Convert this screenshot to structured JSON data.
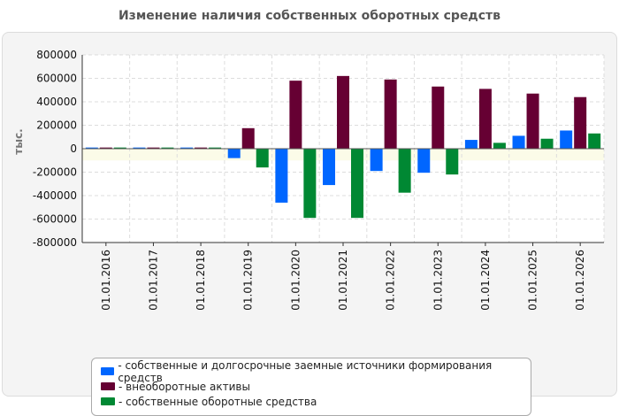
{
  "chart_data": {
    "type": "bar",
    "title": "Изменение наличия собственных оборотных средств",
    "xlabel": "",
    "ylabel": "тыс.",
    "ylim": [
      -800000,
      800000
    ],
    "yticks": [
      "800000",
      "600000",
      "400000",
      "200000",
      "0",
      "-200000",
      "-400000",
      "-600000",
      "-800000"
    ],
    "grid": true,
    "legend_position": "bottom",
    "categories": [
      "01.01.2016",
      "01.01.2017",
      "01.01.2018",
      "01.01.2019",
      "01.01.2020",
      "01.01.2021",
      "01.01.2022",
      "01.01.2023",
      "01.01.2024",
      "01.01.2025",
      "01.01.2026"
    ],
    "series": [
      {
        "name": "- собственные и долгосрочные заемные источники формирования средств",
        "color": "#0066ff",
        "values": [
          10000,
          10000,
          10000,
          -80000,
          -460000,
          -310000,
          -190000,
          -205000,
          75000,
          110000,
          155000
        ]
      },
      {
        "name": "- внеоборотные активы",
        "color": "#660033",
        "values": [
          10000,
          10000,
          10000,
          175000,
          580000,
          620000,
          590000,
          530000,
          510000,
          470000,
          440000
        ]
      },
      {
        "name": "- собственные оборотные средства",
        "color": "#008833",
        "values": [
          10000,
          10000,
          10000,
          -160000,
          -590000,
          -590000,
          -375000,
          -220000,
          50000,
          85000,
          130000
        ]
      }
    ]
  }
}
